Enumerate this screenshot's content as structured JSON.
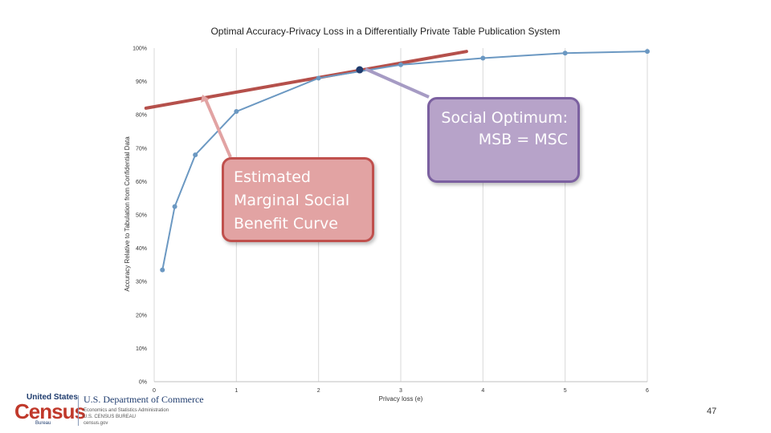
{
  "chart_data": {
    "type": "line",
    "title": "Optimal Accuracy-Privacy Loss in a Differentially Private Table Publication System",
    "xlabel": "Privacy loss (e)",
    "ylabel": "Accuracy Relative to Tabulation from Confidential Data",
    "xlim": [
      0,
      6
    ],
    "ylim": [
      0,
      1
    ],
    "x_ticks": [
      "0",
      "1",
      "2",
      "3",
      "4",
      "5",
      "6"
    ],
    "y_ticks": [
      "0%",
      "10%",
      "20%",
      "30%",
      "40%",
      "50%",
      "60%",
      "70%",
      "80%",
      "90%",
      "100%"
    ],
    "grid": "vertical",
    "series": [
      {
        "color": "#6b98c2",
        "x": [
          0.1,
          0.25,
          0.5,
          1.0,
          2.0,
          3.0,
          4.0,
          5.0,
          6.0
        ],
        "y": [
          0.335,
          0.525,
          0.68,
          0.81,
          0.91,
          0.95,
          0.97,
          0.985,
          0.99
        ]
      }
    ],
    "tangent_line": {
      "color": "#b5504b",
      "x": [
        -0.1,
        3.8
      ],
      "y": [
        0.82,
        0.99
      ]
    },
    "optimum_point": {
      "x": 2.5,
      "y": 0.935,
      "color": "#1f3c6e"
    }
  },
  "callouts": {
    "optimum": {
      "lines": [
        "Social Optimum:",
        "MSB = MSC"
      ]
    },
    "benefit": {
      "lines": [
        "Estimated",
        "Marginal Social",
        "Benefit Curve"
      ]
    }
  },
  "footer": {
    "united_states": "United States",
    "census": "Census",
    "bureau": "Bureau",
    "department": "U.S. Department of Commerce",
    "sub1": "Economics and Statistics Administration",
    "sub2": "U.S. CENSUS BUREAU",
    "sub3": "census.gov",
    "page_number": "47"
  }
}
